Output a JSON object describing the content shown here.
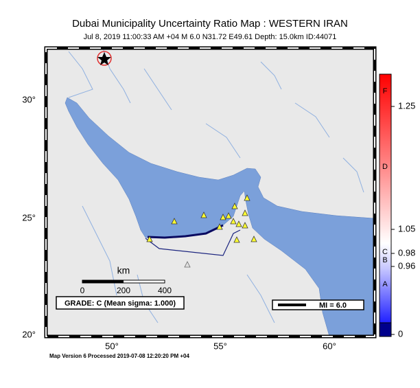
{
  "header": {
    "title": "Dubai Municipality Uncertainty Ratio Map : WESTERN IRAN",
    "subtitle": "Jul  8, 2019 11:00:33 AM +04   M 6.0   N31.72 E49.61   Depth: 15.0km   ID:44071"
  },
  "map": {
    "lat_labels": [
      "30°",
      "25°",
      "20°"
    ],
    "lon_labels": [
      "50°",
      "55°",
      "60°"
    ],
    "scale": {
      "unit": "km",
      "labels": [
        "0",
        "200",
        "400"
      ]
    },
    "grade": "GRADE: C (Mean sigma: 1.000)",
    "magnitude_legend": "MI = 6.0"
  },
  "colorbar": {
    "grades": [
      "F",
      "D",
      "C",
      "B",
      "A"
    ],
    "values": [
      "1.25",
      "1.05",
      "0.98",
      "0.96",
      "0"
    ]
  },
  "footer": "Map Version 6 Processed 2019-07-08 12:20:20 PM +04"
}
